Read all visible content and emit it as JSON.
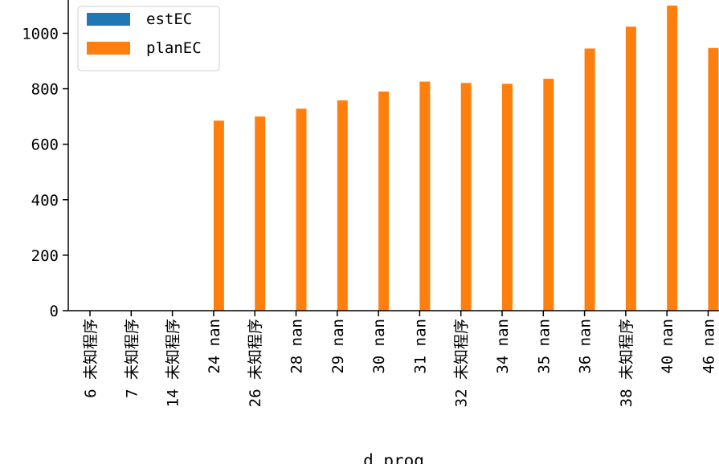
{
  "chart_data": {
    "type": "bar",
    "xlabel": "d_prog",
    "ylabel": "",
    "ylim": [
      0,
      1120
    ],
    "yticks": [
      0,
      200,
      400,
      600,
      800,
      1000
    ],
    "categories": [
      "6 未知程序",
      "7 未知程序",
      "14 未知程序",
      "24 nan",
      "26 未知程序",
      "28 nan",
      "29 nan",
      "30 nan",
      "31 nan",
      "32 未知程序",
      "34 nan",
      "35 nan",
      "36 nan",
      "38 未知程序",
      "40 nan",
      "46 nan"
    ],
    "series": [
      {
        "name": "estEC",
        "color": "#1f77b4",
        "values": [
          0,
          0,
          0,
          0,
          0,
          0,
          0,
          0,
          0,
          0,
          0,
          0,
          0,
          0,
          0,
          0
        ]
      },
      {
        "name": "planEC",
        "color": "#ff7f0e",
        "values": [
          0,
          0,
          0,
          685,
          700,
          728,
          758,
          790,
          826,
          821,
          818,
          836,
          945,
          1024,
          1100,
          947
        ]
      }
    ],
    "legend": "top-left",
    "grid": false
  }
}
